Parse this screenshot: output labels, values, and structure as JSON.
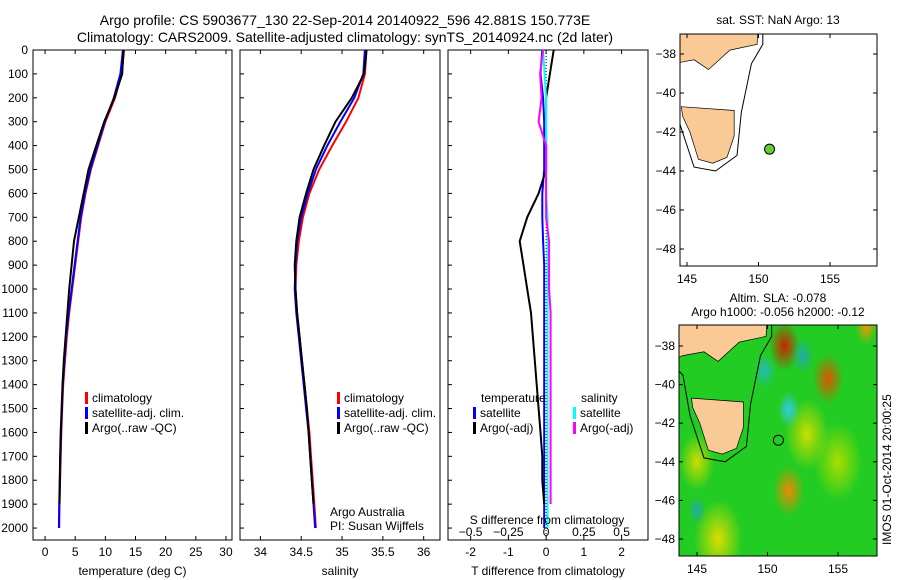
{
  "title_line1": "Argo profile: CS 5903677_130 22-Sep-2014 20140922_596 42.881S 150.773E",
  "title_line2": "Climatology: CARS2009. Satellite-adjusted climatology: synTS_20140924.nc (2d later)",
  "chart_data": [
    {
      "type": "line",
      "name": "temperature",
      "xlabel": "temperature (deg C)",
      "xlim": [
        -2,
        31
      ],
      "xticks": [
        0,
        5,
        10,
        15,
        20,
        25,
        30
      ],
      "ylim": [
        0,
        2050
      ],
      "yticks": [
        0,
        100,
        200,
        300,
        400,
        500,
        600,
        700,
        800,
        900,
        1000,
        1100,
        1200,
        1300,
        1400,
        1500,
        1600,
        1700,
        1800,
        1900,
        2000
      ],
      "depth": [
        0,
        100,
        200,
        300,
        400,
        500,
        600,
        700,
        800,
        900,
        1000,
        1100,
        1200,
        1300,
        1400,
        1500,
        1600,
        1700,
        1800,
        1900,
        2000
      ],
      "series": [
        {
          "name": "climatology",
          "color": "#ff0000",
          "values": [
            13.1,
            12.7,
            11.6,
            10.0,
            8.8,
            7.6,
            6.7,
            6.0,
            5.5,
            5.0,
            4.5,
            4.0,
            3.6,
            3.3,
            3.0,
            2.85,
            2.7,
            2.6,
            2.5,
            2.4,
            2.35
          ]
        },
        {
          "name": "satellite-adj. clim.",
          "color": "#0000ff",
          "values": [
            12.9,
            12.5,
            11.4,
            9.9,
            8.7,
            7.5,
            6.6,
            5.9,
            5.4,
            4.9,
            4.4,
            3.9,
            3.5,
            3.2,
            2.95,
            2.8,
            2.65,
            2.55,
            2.45,
            2.35,
            2.3
          ]
        },
        {
          "name": "Argo(..raw -QC)",
          "color": "#000000",
          "values": [
            13.0,
            12.8,
            11.5,
            9.8,
            8.5,
            7.2,
            6.4,
            5.6,
            4.8,
            4.4,
            4.0,
            3.7,
            3.4,
            3.1,
            2.9,
            2.75,
            2.6,
            2.5,
            2.45,
            2.4
          ]
        }
      ]
    },
    {
      "type": "line",
      "name": "salinity",
      "xlabel": "salinity",
      "xlim": [
        33.75,
        36.2
      ],
      "xticks": [
        34,
        34.5,
        35,
        35.5,
        36
      ],
      "ylim": [
        0,
        2050
      ],
      "depth": [
        0,
        100,
        200,
        300,
        400,
        500,
        600,
        700,
        800,
        900,
        1000,
        1100,
        1200,
        1300,
        1400,
        1500,
        1600,
        1700,
        1800,
        1900,
        2000
      ],
      "series": [
        {
          "name": "climatology",
          "color": "#ff0000",
          "values": [
            35.3,
            35.28,
            35.2,
            35.05,
            34.88,
            34.72,
            34.6,
            34.52,
            34.47,
            34.44,
            34.43,
            34.45,
            34.48,
            34.51,
            34.54,
            34.57,
            34.6,
            34.62,
            34.64,
            34.66,
            34.68
          ]
        },
        {
          "name": "satellite-adj. clim.",
          "color": "#0000ff",
          "values": [
            35.28,
            35.26,
            35.15,
            34.98,
            34.82,
            34.68,
            34.58,
            34.5,
            34.45,
            34.43,
            34.42,
            34.44,
            34.47,
            34.5,
            34.53,
            34.56,
            34.59,
            34.61,
            34.63,
            34.65,
            34.67
          ]
        },
        {
          "name": "Argo(..raw -QC)",
          "color": "#000000",
          "values": [
            35.3,
            35.27,
            35.12,
            34.92,
            34.78,
            34.65,
            34.56,
            34.48,
            34.44,
            34.42,
            34.43,
            34.45,
            34.48,
            34.51,
            34.54,
            34.57,
            34.59,
            34.61,
            34.63,
            34.65
          ]
        }
      ],
      "annotation": [
        "Argo Australia",
        "PI: Susan Wijffels"
      ]
    },
    {
      "type": "line",
      "name": "difference",
      "xlabel": "T difference from climatology",
      "xlabel2": "S difference from climatology",
      "xlim": [
        -2.6,
        2.7
      ],
      "xticks": [
        -2,
        -1,
        0,
        1,
        2
      ],
      "xticks2": [
        "-0.5",
        "-0.25",
        "0",
        "0.25",
        "0.5"
      ],
      "s_scale": 4,
      "ylim": [
        0,
        2050
      ],
      "depth": [
        0,
        100,
        200,
        300,
        400,
        500,
        600,
        700,
        800,
        900,
        1000,
        1100,
        1200,
        1300,
        1400,
        1500,
        1600,
        1700,
        1800,
        1900,
        2000
      ],
      "legend_headers": [
        "temperature",
        "salinity"
      ],
      "series": [
        {
          "name": "satellite",
          "group": "temperature",
          "color": "#0000ff",
          "values": [
            -0.1,
            -0.15,
            -0.08,
            -0.05,
            -0.05,
            -0.05,
            -0.1,
            -0.1,
            -0.08,
            -0.05,
            -0.05,
            -0.05,
            -0.05,
            -0.05,
            -0.05,
            -0.05,
            -0.05,
            -0.05,
            -0.05,
            -0.05,
            -0.05
          ]
        },
        {
          "name": "Argo(-adj)",
          "group": "temperature",
          "color": "#000000",
          "values": [
            0.2,
            0.1,
            0.0,
            0.0,
            0.0,
            0.0,
            -0.2,
            -0.5,
            -0.7,
            -0.6,
            -0.5,
            -0.4,
            -0.35,
            -0.3,
            -0.25,
            -0.2,
            -0.15,
            -0.1,
            -0.1,
            -0.05
          ]
        },
        {
          "name": "satellite",
          "group": "salinity",
          "color": "#00ffff",
          "values": [
            -0.02,
            -0.01,
            0.0,
            0.0,
            0.0,
            0.0,
            0.0,
            0.01,
            0.01,
            0.01,
            0.01,
            0.01,
            0.01,
            0.01,
            0.01,
            0.01,
            0.01,
            0.01,
            0.01,
            0.01,
            0.01
          ]
        },
        {
          "name": "Argo(-adj)",
          "group": "salinity",
          "color": "#ff00ff",
          "values": [
            -0.02,
            -0.04,
            -0.03,
            -0.05,
            0.0,
            0.0,
            0.0,
            0.0,
            0.02,
            0.02,
            0.02,
            0.03,
            0.03,
            0.03,
            0.03,
            0.03,
            0.03,
            0.03,
            0.03,
            0.03
          ]
        }
      ]
    }
  ],
  "map_sst": {
    "title": "sat. SST: NaN Argo: 13",
    "lon_ticks": [
      145,
      150,
      155
    ],
    "lat_ticks": [
      -38,
      -40,
      -42,
      -44,
      -46,
      -48
    ],
    "profile_lon": 150.773,
    "profile_lat": -42.881,
    "marker_color": "#66cc33"
  },
  "map_sla": {
    "title_line1": "Altim. SLA: -0.078",
    "title_line2": "Argo h1000: -0.056 h2000: -0.12",
    "lon_ticks": [
      145,
      150,
      155
    ],
    "lat_ticks": [
      -38,
      -40,
      -42,
      -44,
      -46,
      -48
    ],
    "credit": "IMOS 01-Oct-2014 20:00:25"
  },
  "land_color": "#f9c996"
}
